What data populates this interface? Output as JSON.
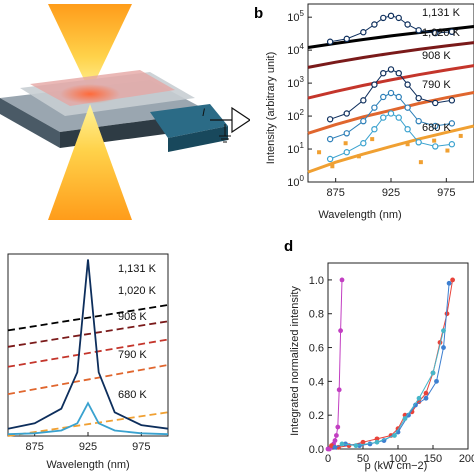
{
  "panels": {
    "a": {
      "current_label": "I"
    },
    "b": {
      "label": "b",
      "ylabel": "Intensity (arbitrary unit)",
      "xlabel": "Wavelength (nm)",
      "xticks": [
        "875",
        "925",
        "975"
      ],
      "yticks": [
        "10^0",
        "10^1",
        "10^2",
        "10^3",
        "10^4",
        "10^5"
      ],
      "temp_labels": [
        "1,131 K",
        "1,020 K",
        "908 K",
        "790 K",
        "680 K"
      ]
    },
    "c": {
      "xlabel": "Wavelength (nm)",
      "xticks": [
        "875",
        "925",
        "975"
      ],
      "temp_labels": [
        "1,131 K",
        "1,020 K",
        "908 K",
        "790 K",
        "680 K"
      ]
    },
    "d": {
      "label": "d",
      "ylabel": "Integrated normalized intensity",
      "xlabel": "p (kW cm−2)",
      "xticks": [
        "0",
        "50",
        "100",
        "150",
        "200"
      ],
      "yticks": [
        "0.0",
        "0.2",
        "0.4",
        "0.6",
        "0.8",
        "1.0"
      ]
    }
  },
  "colors": {
    "t1131": "#000000",
    "t1020": "#7a1a1a",
    "t908": "#c4352b",
    "t790": "#e0662e",
    "t680": "#f0a032",
    "peak_dark": "#0d2e5c",
    "peak_light": "#3aa2cf",
    "d_magenta": "#c23fc2",
    "d_red": "#e8433a",
    "d_blue": "#3d7fd0",
    "d_cyan": "#46b6c9"
  },
  "chart_data": [
    {
      "type": "line",
      "panel": "b",
      "title": "",
      "xlabel": "Wavelength (nm)",
      "ylabel": "Intensity (arbitrary unit)",
      "xlim": [
        850,
        1000
      ],
      "ylim_log10": [
        0,
        5.4
      ],
      "y_scale": "log",
      "series": [
        {
          "name": "1,131 K",
          "x": [
            850,
            875,
            900,
            925,
            950,
            975,
            1000
          ],
          "y": [
            12000,
            16000,
            21000,
            27000,
            34000,
            42000,
            52000
          ]
        },
        {
          "name": "1,020 K",
          "x": [
            850,
            875,
            900,
            925,
            950,
            975,
            1000
          ],
          "y": [
            3000,
            4300,
            6000,
            8000,
            10500,
            13500,
            17000
          ]
        },
        {
          "name": "908 K",
          "x": [
            850,
            875,
            900,
            925,
            950,
            975,
            1000
          ],
          "y": [
            350,
            560,
            850,
            1250,
            1800,
            2500,
            3400
          ]
        },
        {
          "name": "790 K",
          "x": [
            850,
            875,
            900,
            925,
            950,
            975,
            1000
          ],
          "y": [
            30,
            55,
            95,
            150,
            240,
            360,
            520
          ]
        },
        {
          "name": "680 K",
          "x": [
            850,
            875,
            900,
            925,
            950,
            975,
            1000
          ],
          "y": [
            2,
            4,
            7,
            12,
            20,
            32,
            50
          ]
        },
        {
          "x": [
            870,
            885,
            900,
            910,
            918,
            925,
            932,
            940,
            950,
            965,
            980
          ],
          "y": [
            18000,
            22000,
            35000,
            60000,
            95000,
            110000,
            95000,
            60000,
            40000,
            33000,
            36000
          ]
        },
        {
          "x": [
            870,
            885,
            900,
            910,
            918,
            925,
            932,
            940,
            950,
            965,
            980
          ],
          "y": [
            80,
            120,
            300,
            900,
            2000,
            2600,
            2000,
            900,
            350,
            250,
            300
          ]
        },
        {
          "x": [
            870,
            885,
            900,
            910,
            918,
            925,
            932,
            940,
            950,
            965,
            980
          ],
          "y": [
            20,
            30,
            70,
            180,
            380,
            500,
            380,
            180,
            70,
            50,
            60
          ]
        },
        {
          "x": [
            870,
            885,
            900,
            910,
            918,
            925,
            932,
            940,
            950,
            965,
            980
          ],
          "y": [
            5,
            8,
            15,
            40,
            90,
            120,
            90,
            40,
            16,
            12,
            14
          ]
        }
      ]
    },
    {
      "type": "line",
      "panel": "c",
      "title": "",
      "xlabel": "Wavelength (nm)",
      "ylabel": "",
      "xlim": [
        850,
        1000
      ],
      "ylim": [
        0,
        1
      ],
      "series": [
        {
          "name": "1,131 K",
          "x": [
            850,
            1000
          ],
          "y": [
            0.58,
            0.72
          ]
        },
        {
          "name": "1,020 K",
          "x": [
            850,
            1000
          ],
          "y": [
            0.49,
            0.63
          ]
        },
        {
          "name": "908 K",
          "x": [
            850,
            1000
          ],
          "y": [
            0.38,
            0.53
          ]
        },
        {
          "name": "790 K",
          "x": [
            850,
            1000
          ],
          "y": [
            0.23,
            0.39
          ]
        },
        {
          "name": "680 K",
          "x": [
            850,
            1000
          ],
          "y": [
            0.0,
            0.13
          ]
        },
        {
          "x": [
            850,
            875,
            900,
            915,
            925,
            935,
            950,
            975,
            1000
          ],
          "y": [
            0.04,
            0.07,
            0.15,
            0.35,
            0.97,
            0.35,
            0.13,
            0.06,
            0.04
          ]
        },
        {
          "x": [
            850,
            875,
            900,
            915,
            925,
            935,
            950,
            975,
            1000
          ],
          "y": [
            0.01,
            0.015,
            0.03,
            0.07,
            0.18,
            0.07,
            0.03,
            0.015,
            0.01
          ]
        }
      ]
    },
    {
      "type": "scatter",
      "panel": "d",
      "title": "",
      "xlabel": "p (kW cm−2)",
      "ylabel": "Integrated normalized intensity",
      "xlim": [
        0,
        200
      ],
      "ylim": [
        0,
        1.1
      ],
      "series": [
        {
          "x": [
            0,
            2,
            4,
            6,
            8,
            10,
            12,
            14,
            16,
            18,
            20
          ],
          "y": [
            0.0,
            0.0,
            0.01,
            0.02,
            0.03,
            0.05,
            0.08,
            0.13,
            0.35,
            0.7,
            1.0
          ]
        },
        {
          "x": [
            5,
            15,
            30,
            50,
            70,
            90,
            100,
            110,
            120,
            130,
            140,
            150,
            160,
            170,
            178
          ],
          "y": [
            0.02,
            0.01,
            0.02,
            0.04,
            0.06,
            0.08,
            0.12,
            0.2,
            0.22,
            0.28,
            0.33,
            0.45,
            0.63,
            0.8,
            1.0
          ]
        },
        {
          "x": [
            10,
            25,
            45,
            60,
            80,
            100,
            115,
            125,
            140,
            155,
            165,
            173
          ],
          "y": [
            0.01,
            0.03,
            0.02,
            0.03,
            0.05,
            0.1,
            0.2,
            0.26,
            0.3,
            0.4,
            0.6,
            0.98
          ]
        },
        {
          "x": [
            20,
            40,
            70,
            95,
            110,
            130,
            150,
            165
          ],
          "y": [
            0.03,
            0.02,
            0.04,
            0.08,
            0.18,
            0.3,
            0.45,
            0.7
          ]
        }
      ]
    }
  ]
}
